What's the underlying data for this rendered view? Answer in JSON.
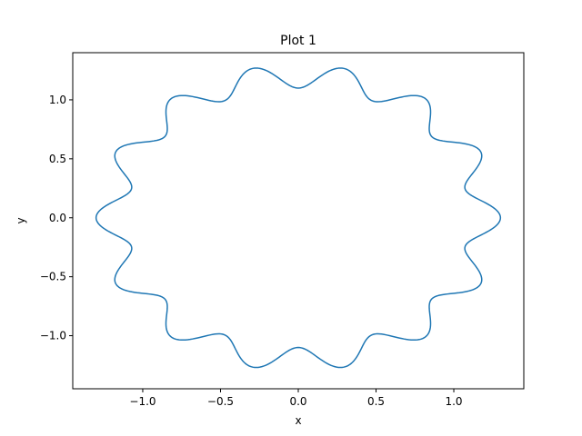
{
  "chart_data": {
    "type": "line",
    "title": "Plot 1",
    "xlabel": "x",
    "ylabel": "y",
    "xlim": [
      -1.45,
      1.45
    ],
    "ylim": [
      -1.45,
      1.4
    ],
    "x_ticks": [
      -1.0,
      -0.5,
      0.0,
      0.5,
      1.0
    ],
    "y_ticks": [
      -1.0,
      -0.5,
      0.0,
      0.5,
      1.0
    ],
    "x_tick_labels": [
      "−1.0",
      "−0.5",
      "0.0",
      "0.5",
      "1.0"
    ],
    "y_tick_labels": [
      "−1.0",
      "−0.5",
      "0.0",
      "0.5",
      "1.0"
    ],
    "grid": false,
    "legend": "none",
    "series": [
      {
        "color": "#1f77b4",
        "curve": "polar",
        "r_base": 1.2,
        "r_amplitude": 0.1,
        "lobes": 14,
        "phase_deg": 90,
        "samples": 720
      }
    ]
  }
}
